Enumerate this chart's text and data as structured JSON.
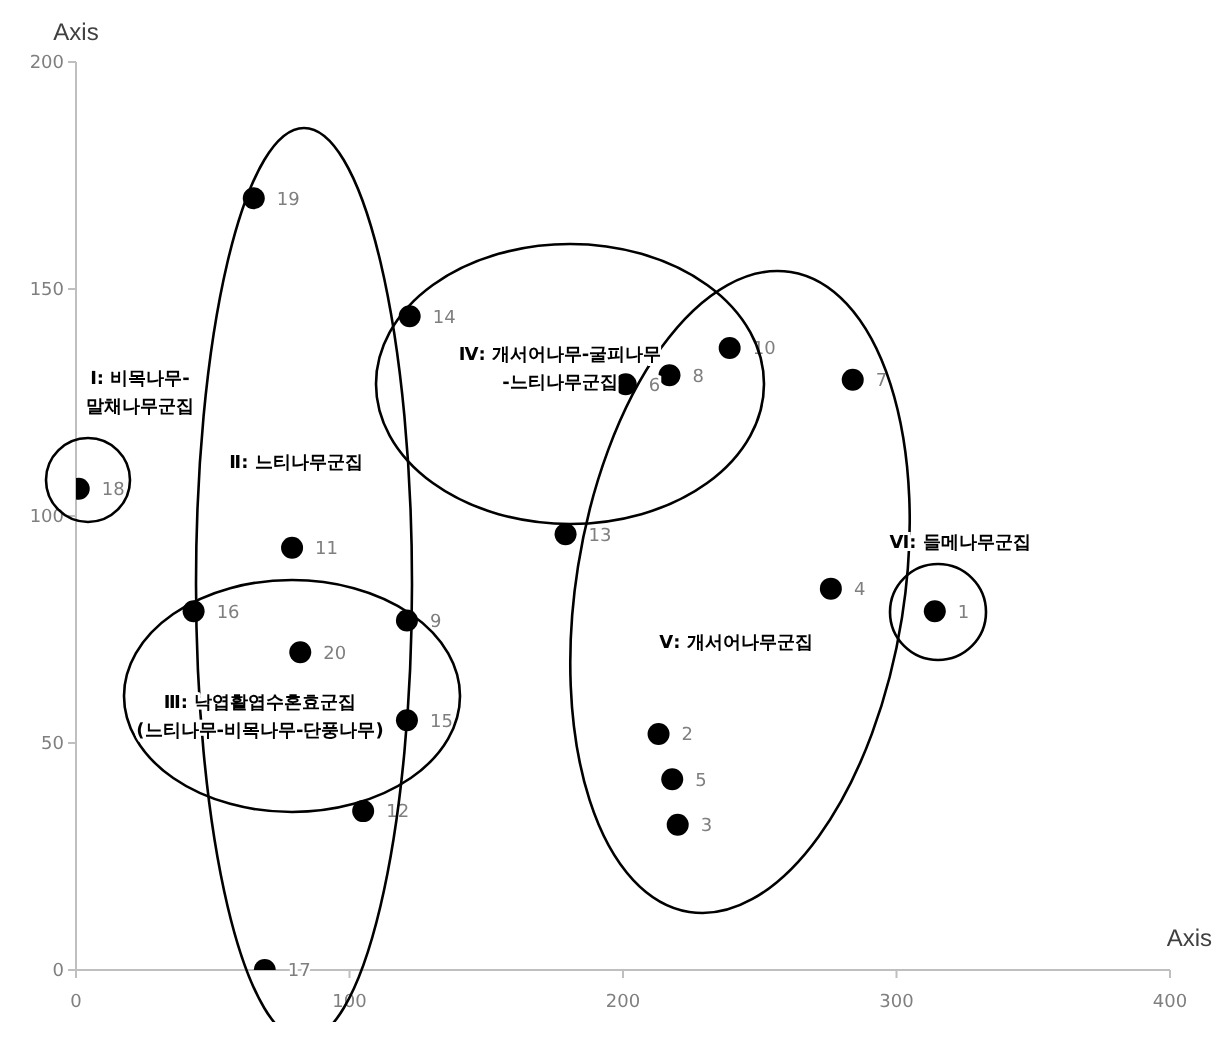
{
  "chart_data": {
    "type": "scatter",
    "xlabel": "Axis",
    "ylabel": "Axis",
    "xlim": [
      0,
      400
    ],
    "xticks": [
      0,
      100,
      200,
      300,
      400
    ],
    "ylim": [
      0,
      200
    ],
    "yticks": [
      0,
      50,
      100,
      150,
      200
    ],
    "grid": false,
    "legend": false,
    "marker": "circle",
    "series": [
      {
        "name": "1",
        "color": "#000000",
        "x": [
          314
        ],
        "values": [
          79
        ]
      },
      {
        "name": "2",
        "color": "#000000",
        "x": [
          213
        ],
        "values": [
          52
        ]
      },
      {
        "name": "3",
        "color": "#000000",
        "x": [
          220
        ],
        "values": [
          32
        ]
      },
      {
        "name": "4",
        "color": "#000000",
        "x": [
          276
        ],
        "values": [
          84
        ]
      },
      {
        "name": "5",
        "color": "#000000",
        "x": [
          218
        ],
        "values": [
          42
        ]
      },
      {
        "name": "6",
        "color": "#000000",
        "x": [
          201
        ],
        "values": [
          129
        ]
      },
      {
        "name": "7",
        "color": "#000000",
        "x": [
          284
        ],
        "values": [
          130
        ]
      },
      {
        "name": "8",
        "color": "#000000",
        "x": [
          217
        ],
        "values": [
          131
        ]
      },
      {
        "name": "9",
        "color": "#000000",
        "x": [
          121
        ],
        "values": [
          77
        ]
      },
      {
        "name": "10",
        "color": "#000000",
        "x": [
          239
        ],
        "values": [
          137
        ]
      },
      {
        "name": "11",
        "color": "#000000",
        "x": [
          79
        ],
        "values": [
          93
        ]
      },
      {
        "name": "12",
        "color": "#000000",
        "x": [
          105
        ],
        "values": [
          35
        ]
      },
      {
        "name": "13",
        "color": "#000000",
        "x": [
          179
        ],
        "values": [
          96
        ]
      },
      {
        "name": "14",
        "color": "#000000",
        "x": [
          122
        ],
        "values": [
          144
        ]
      },
      {
        "name": "15",
        "color": "#000000",
        "x": [
          121
        ],
        "values": [
          55
        ]
      },
      {
        "name": "16",
        "color": "#000000",
        "x": [
          43
        ],
        "values": [
          79
        ]
      },
      {
        "name": "17",
        "color": "#000000",
        "x": [
          69
        ],
        "values": [
          0
        ]
      },
      {
        "name": "18",
        "color": "#000000",
        "x": [
          1
        ],
        "values": [
          106
        ]
      },
      {
        "name": "19",
        "color": "#000000",
        "x": [
          65
        ],
        "values": [
          170
        ]
      },
      {
        "name": "20",
        "color": "#000000",
        "x": [
          82
        ],
        "values": [
          70
        ]
      }
    ],
    "annotations": [
      "Ⅰ: 비목나무-\n말채나무군집",
      "Ⅱ: 느티나무군집",
      "Ⅲ: 낙엽활엽수혼효군집\n(느티나무-비목나무-단풍나무)",
      "Ⅳ: 개서어나무-굴피나무\n-느티나무군집",
      "Ⅴ: 개서어나무군집",
      "Ⅵ: 들메나무군집"
    ]
  }
}
